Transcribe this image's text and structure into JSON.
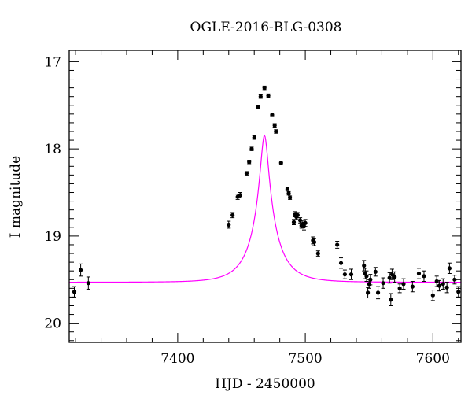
{
  "chart_data": {
    "type": "scatter",
    "title": "OGLE-2016-BLG-0308",
    "xlabel": "HJD - 2450000",
    "ylabel": "I magnitude",
    "xlim": [
      7315,
      7622
    ],
    "ylim": [
      20.22,
      16.87
    ],
    "y_inverted": true,
    "x_ticks": [
      7400,
      7500,
      7600
    ],
    "y_ticks": [
      17,
      18,
      19,
      20
    ],
    "grid": false,
    "series": [
      {
        "type": "points_with_errorbars",
        "color": "#000000",
        "points": [
          [
            7319,
            19.64,
            0.06
          ],
          [
            7324,
            19.39,
            0.07
          ],
          [
            7330,
            19.54,
            0.07
          ],
          [
            7440,
            18.87,
            0.04
          ],
          [
            7443,
            18.76,
            0.03
          ],
          [
            7447,
            18.55,
            0.03
          ],
          [
            7449,
            18.53,
            0.03
          ],
          [
            7454,
            18.28,
            0.02
          ],
          [
            7456,
            18.15,
            0.02
          ],
          [
            7458,
            18.0,
            0.02
          ],
          [
            7460,
            17.87,
            0.02
          ],
          [
            7463,
            17.52,
            0.02
          ],
          [
            7465,
            17.4,
            0.02
          ],
          [
            7468,
            17.3,
            0.02
          ],
          [
            7471,
            17.39,
            0.02
          ],
          [
            7474,
            17.61,
            0.02
          ],
          [
            7476,
            17.73,
            0.02
          ],
          [
            7477,
            17.8,
            0.02
          ],
          [
            7481,
            18.16,
            0.02
          ],
          [
            7486,
            18.46,
            0.02
          ],
          [
            7487,
            18.51,
            0.02
          ],
          [
            7488,
            18.56,
            0.02
          ],
          [
            7492,
            18.75,
            0.03
          ],
          [
            7493,
            18.78,
            0.03
          ],
          [
            7494,
            18.76,
            0.03
          ],
          [
            7491,
            18.84,
            0.03
          ],
          [
            7496,
            18.82,
            0.03
          ],
          [
            7497,
            18.88,
            0.03
          ],
          [
            7498,
            18.86,
            0.04
          ],
          [
            7499,
            18.89,
            0.04
          ],
          [
            7500,
            18.85,
            0.04
          ],
          [
            7506,
            19.05,
            0.04
          ],
          [
            7507,
            19.07,
            0.04
          ],
          [
            7510,
            19.2,
            0.03
          ],
          [
            7525,
            19.1,
            0.04
          ],
          [
            7528,
            19.31,
            0.06
          ],
          [
            7531,
            19.44,
            0.05
          ],
          [
            7536,
            19.44,
            0.06
          ],
          [
            7546,
            19.34,
            0.06
          ],
          [
            7547,
            19.43,
            0.06
          ],
          [
            7548,
            19.46,
            0.06
          ],
          [
            7549,
            19.65,
            0.06
          ],
          [
            7550,
            19.55,
            0.05
          ],
          [
            7551,
            19.5,
            0.06
          ],
          [
            7555,
            19.41,
            0.05
          ],
          [
            7557,
            19.65,
            0.07
          ],
          [
            7561,
            19.54,
            0.06
          ],
          [
            7566,
            19.48,
            0.06
          ],
          [
            7567,
            19.73,
            0.07
          ],
          [
            7568,
            19.44,
            0.06
          ],
          [
            7570,
            19.47,
            0.06
          ],
          [
            7574,
            19.6,
            0.05
          ],
          [
            7577,
            19.55,
            0.06
          ],
          [
            7584,
            19.58,
            0.06
          ],
          [
            7589,
            19.43,
            0.06
          ],
          [
            7593,
            19.46,
            0.06
          ],
          [
            7600,
            19.68,
            0.06
          ],
          [
            7603,
            19.52,
            0.06
          ],
          [
            7605,
            19.57,
            0.06
          ],
          [
            7608,
            19.55,
            0.06
          ],
          [
            7611,
            19.59,
            0.06
          ],
          [
            7613,
            19.37,
            0.06
          ],
          [
            7617,
            19.5,
            0.05
          ],
          [
            7620,
            19.64,
            0.06
          ]
        ]
      },
      {
        "type": "model_curve",
        "color": "#ff00ff",
        "model": "pspl",
        "t0": 7468,
        "tE": 20.4,
        "u0": 0.14,
        "base_mag": 19.53,
        "blend_fraction": 0.6
      }
    ]
  }
}
